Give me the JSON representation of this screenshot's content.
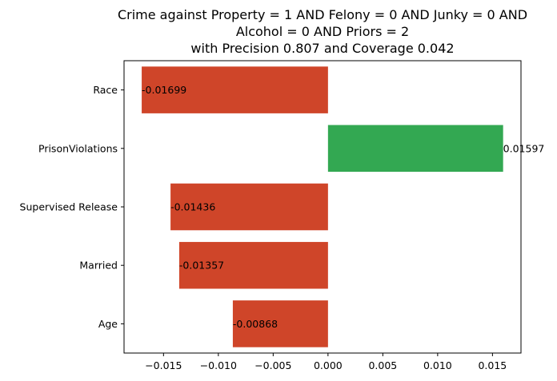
{
  "chart_data": {
    "type": "bar",
    "orientation": "horizontal",
    "title_lines": [
      "Crime against Property = 1 AND Felony = 0 AND Junky = 0 AND",
      "Alcohol = 0 AND Priors = 2",
      "with Precision 0.807 and Coverage 0.042"
    ],
    "categories": [
      "Race",
      "PrisonViolations",
      "Supervised Release",
      "Married",
      "Age"
    ],
    "values": [
      -0.01699,
      0.01597,
      -0.01436,
      -0.01357,
      -0.00868
    ],
    "value_labels": [
      "-0.01699",
      "0.01597",
      "-0.01436",
      "-0.01357",
      "-0.00868"
    ],
    "x_ticks": [
      -0.015,
      -0.01,
      -0.005,
      0.0,
      0.005,
      0.01,
      0.015
    ],
    "x_tick_labels": [
      "−0.015",
      "−0.010",
      "−0.005",
      "0.000",
      "0.005",
      "0.010",
      "0.015"
    ],
    "xlim": [
      -0.0186,
      0.0176
    ],
    "xlabel": "",
    "ylabel": "",
    "grid": false,
    "colors": {
      "positive": "#33a852",
      "negative": "#cf4529"
    }
  }
}
